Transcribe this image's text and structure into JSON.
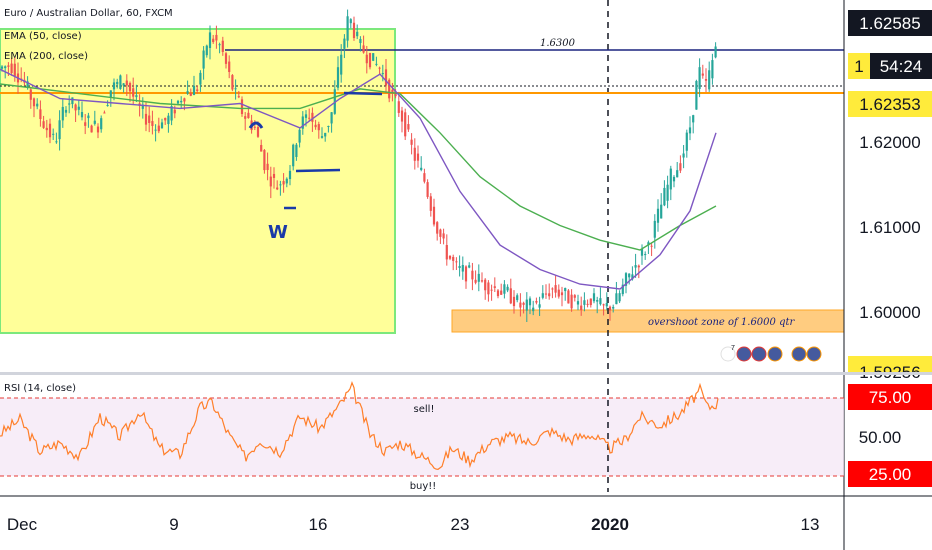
{
  "header": {
    "title": "Euro / Australian Dollar, 60, FXCM",
    "ema50_label": "EMA (50, close)",
    "ema200_label": "EMA (200, close)",
    "rsi_label": "RSI (14, close)"
  },
  "price_axis": {
    "ticks": [
      "1.62000",
      "1.61000",
      "1.60000"
    ],
    "top_label": "1.62585",
    "current_price": "1.62353",
    "countdown": "54:24",
    "countdown_prefix": "1",
    "bottom_partial": "1.59256"
  },
  "rsi_axis": {
    "upper": "75.00",
    "mid": "50.00",
    "lower": "25.00"
  },
  "time_axis": [
    "Dec",
    "9",
    "16",
    "23",
    "2020",
    "13"
  ],
  "annotations": {
    "level_label": "1.6300",
    "zone_label": "overshoot zone of 1.6000 qtr",
    "sell_label": "sell!",
    "buy_label": "buy!!",
    "w_letter": "W",
    "events_count": "7"
  },
  "colors": {
    "up": "#26a69a",
    "down": "#ef5350",
    "ema50": "#7e57c2",
    "ema200": "#4caf50",
    "rsi": "#ff7f2a",
    "highlight_box": "#ffff00",
    "zone": "#ffb74d",
    "price_tag": "#ffeb3b",
    "rsi_tag": "#ff0000"
  },
  "chart_data": {
    "type": "candlestick",
    "title": "Euro / Australian Dollar, 60, FXCM",
    "y_range": [
      1.5925,
      1.6306
    ],
    "rsi_range": [
      10,
      90
    ],
    "path": [
      [
        0,
        1.6235
      ],
      [
        14,
        1.624
      ],
      [
        28,
        1.622
      ],
      [
        44,
        1.6185
      ],
      [
        58,
        1.616
      ],
      [
        70,
        1.6205
      ],
      [
        86,
        1.6185
      ],
      [
        100,
        1.6175
      ],
      [
        114,
        1.6215
      ],
      [
        128,
        1.6225
      ],
      [
        142,
        1.6195
      ],
      [
        158,
        1.6175
      ],
      [
        172,
        1.6185
      ],
      [
        186,
        1.621
      ],
      [
        200,
        1.6215
      ],
      [
        212,
        1.627
      ],
      [
        224,
        1.6258
      ],
      [
        236,
        1.6215
      ],
      [
        246,
        1.619
      ],
      [
        258,
        1.6175
      ],
      [
        270,
        1.613
      ],
      [
        280,
        1.6115
      ],
      [
        292,
        1.613
      ],
      [
        302,
        1.6175
      ],
      [
        312,
        1.619
      ],
      [
        324,
        1.6165
      ],
      [
        334,
        1.6185
      ],
      [
        344,
        1.625
      ],
      [
        352,
        1.629
      ],
      [
        362,
        1.626
      ],
      [
        374,
        1.6245
      ],
      [
        384,
        1.6235
      ],
      [
        394,
        1.621
      ],
      [
        404,
        1.619
      ],
      [
        416,
        1.615
      ],
      [
        428,
        1.612
      ],
      [
        438,
        1.608
      ],
      [
        448,
        1.605
      ],
      [
        460,
        1.603
      ],
      [
        474,
        1.6025
      ],
      [
        488,
        1.6015
      ],
      [
        500,
        1.601
      ],
      [
        512,
        1.6005
      ],
      [
        526,
        1.599
      ],
      [
        540,
        1.5995
      ],
      [
        554,
        1.601
      ],
      [
        566,
        1.6005
      ],
      [
        580,
        1.5995
      ],
      [
        594,
        1.6
      ],
      [
        606,
        1.599
      ],
      [
        618,
        1.5995
      ],
      [
        630,
        1.602
      ],
      [
        642,
        1.604
      ],
      [
        654,
        1.606
      ],
      [
        664,
        1.6095
      ],
      [
        674,
        1.6125
      ],
      [
        684,
        1.614
      ],
      [
        694,
        1.618
      ],
      [
        702,
        1.6235
      ],
      [
        708,
        1.6215
      ],
      [
        714,
        1.6235
      ],
      [
        719,
        1.626
      ]
    ],
    "ema50": [
      [
        0,
        1.6235
      ],
      [
        60,
        1.6205
      ],
      [
        120,
        1.62
      ],
      [
        180,
        1.6195
      ],
      [
        240,
        1.62
      ],
      [
        300,
        1.6175
      ],
      [
        340,
        1.6205
      ],
      [
        380,
        1.623
      ],
      [
        420,
        1.6185
      ],
      [
        460,
        1.611
      ],
      [
        500,
        1.6055
      ],
      [
        540,
        1.603
      ],
      [
        580,
        1.6015
      ],
      [
        620,
        1.601
      ],
      [
        660,
        1.6045
      ],
      [
        690,
        1.609
      ],
      [
        716,
        1.617
      ]
    ],
    "ema200": [
      [
        0,
        1.622
      ],
      [
        80,
        1.621
      ],
      [
        160,
        1.62
      ],
      [
        240,
        1.6195
      ],
      [
        300,
        1.6195
      ],
      [
        360,
        1.6215
      ],
      [
        400,
        1.621
      ],
      [
        440,
        1.617
      ],
      [
        480,
        1.6125
      ],
      [
        520,
        1.6095
      ],
      [
        560,
        1.6075
      ],
      [
        600,
        1.606
      ],
      [
        640,
        1.605
      ],
      [
        680,
        1.6075
      ],
      [
        716,
        1.6095
      ]
    ],
    "rsi": [
      [
        0,
        50
      ],
      [
        20,
        60
      ],
      [
        40,
        38
      ],
      [
        60,
        44
      ],
      [
        80,
        34
      ],
      [
        100,
        62
      ],
      [
        120,
        48
      ],
      [
        140,
        66
      ],
      [
        160,
        40
      ],
      [
        180,
        36
      ],
      [
        200,
        68
      ],
      [
        212,
        72
      ],
      [
        230,
        48
      ],
      [
        245,
        34
      ],
      [
        260,
        46
      ],
      [
        280,
        38
      ],
      [
        300,
        62
      ],
      [
        320,
        54
      ],
      [
        340,
        70
      ],
      [
        352,
        82
      ],
      [
        370,
        50
      ],
      [
        385,
        38
      ],
      [
        400,
        44
      ],
      [
        420,
        35
      ],
      [
        440,
        28
      ],
      [
        452,
        40
      ],
      [
        470,
        32
      ],
      [
        490,
        44
      ],
      [
        510,
        48
      ],
      [
        530,
        44
      ],
      [
        550,
        52
      ],
      [
        570,
        46
      ],
      [
        590,
        50
      ],
      [
        610,
        40
      ],
      [
        625,
        46
      ],
      [
        640,
        62
      ],
      [
        660,
        56
      ],
      [
        680,
        64
      ],
      [
        700,
        80
      ],
      [
        708,
        68
      ],
      [
        718,
        72
      ]
    ],
    "levels": {
      "resistance": 1.63,
      "ask_line": 1.6245,
      "current": 1.62353,
      "zone": [
        1.5975,
        1.5998
      ]
    },
    "rsi_levels": [
      75,
      25
    ]
  }
}
